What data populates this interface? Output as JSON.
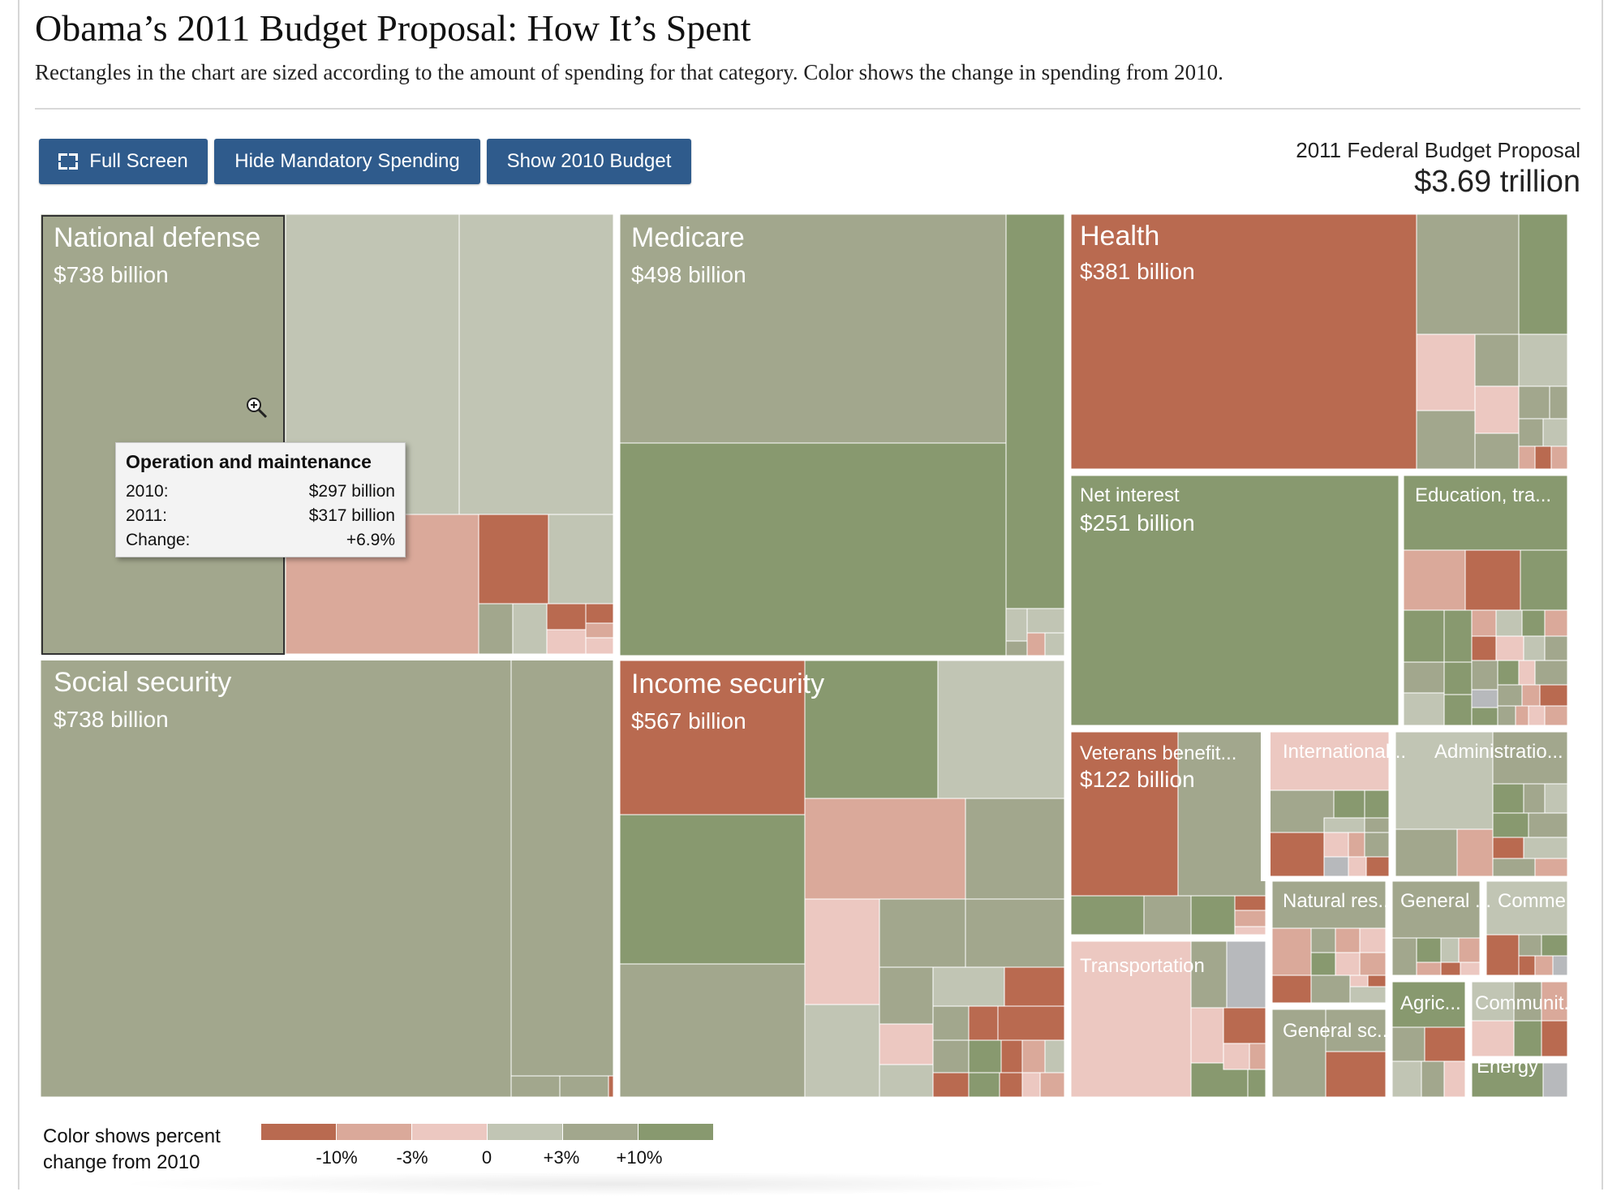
{
  "title": "Obama’s 2011 Budget Proposal: How It’s Spent",
  "subtitle": "Rectangles in the chart are sized according to the amount of spending for that category. Color shows the change in spending from 2010.",
  "toolbar": {
    "full_screen_label": "Full Screen",
    "hide_mandatory_label": "Hide Mandatory Spending",
    "show_2010_label": "Show 2010 Budget"
  },
  "total": {
    "label": "2011 Federal Budget Proposal",
    "value": "$3.69 trillion"
  },
  "colors": {
    "minus10": "#b96a50",
    "minus3": "#daa99a",
    "minus1": "#ecc8c1",
    "zero": "#c1c5b4",
    "plus3": "#a2a78d",
    "plus10": "#88996f",
    "na": "#b7b9bc"
  },
  "tooltip": {
    "title": "Operation and maintenance",
    "rows": [
      {
        "label": "2010:",
        "value": "$297 billion"
      },
      {
        "label": "2011:",
        "value": "$317 billion"
      },
      {
        "label": "Change:",
        "value": "+6.9%"
      }
    ]
  },
  "chart_data": {
    "type": "treemap",
    "title": "Obama’s 2011 Budget Proposal: How It’s Spent",
    "unit": "billion dollars",
    "categories": [
      {
        "name": "National defense",
        "value": 738,
        "value_label": "$738 billion"
      },
      {
        "name": "Social security",
        "value": 738,
        "value_label": "$738 billion"
      },
      {
        "name": "Income security",
        "value": 567,
        "value_label": "$567 billion"
      },
      {
        "name": "Medicare",
        "value": 498,
        "value_label": "$498 billion"
      },
      {
        "name": "Health",
        "value": 381,
        "value_label": "$381 billion"
      },
      {
        "name": "Net interest",
        "value": 251,
        "value_label": "$251 billion"
      },
      {
        "name": "Veterans benefit...",
        "value": 122,
        "value_label": "$122 billion"
      },
      {
        "name": "Education, tra...",
        "value": null,
        "value_label": ""
      },
      {
        "name": "International...",
        "value": null,
        "value_label": ""
      },
      {
        "name": "Administratio...",
        "value": null,
        "value_label": ""
      },
      {
        "name": "Transportation",
        "value": null,
        "value_label": ""
      },
      {
        "name": "Natural res...",
        "value": null,
        "value_label": ""
      },
      {
        "name": "General ...",
        "value": null,
        "value_label": ""
      },
      {
        "name": "Comme...",
        "value": null,
        "value_label": ""
      },
      {
        "name": "General sc...",
        "value": null,
        "value_label": ""
      },
      {
        "name": "Agric...",
        "value": null,
        "value_label": ""
      },
      {
        "name": "Communit...",
        "value": null,
        "value_label": ""
      },
      {
        "name": "Energy",
        "value": null,
        "value_label": ""
      }
    ],
    "highlighted_item": {
      "category": "National defense",
      "name": "Operation and maintenance",
      "value_2010": 297,
      "value_2011": 317,
      "change_pct": 6.9
    },
    "color_scale": {
      "caption": "Color shows percent change from 2010",
      "ticks": [
        "-10%",
        "-3%",
        "0",
        "+3%",
        "+10%"
      ],
      "bins": [
        "minus10",
        "minus3",
        "minus1",
        "zero",
        "plus3",
        "plus10"
      ]
    }
  },
  "legend": {
    "caption_line1": "Color shows percent",
    "caption_line2": "change from 2010"
  }
}
